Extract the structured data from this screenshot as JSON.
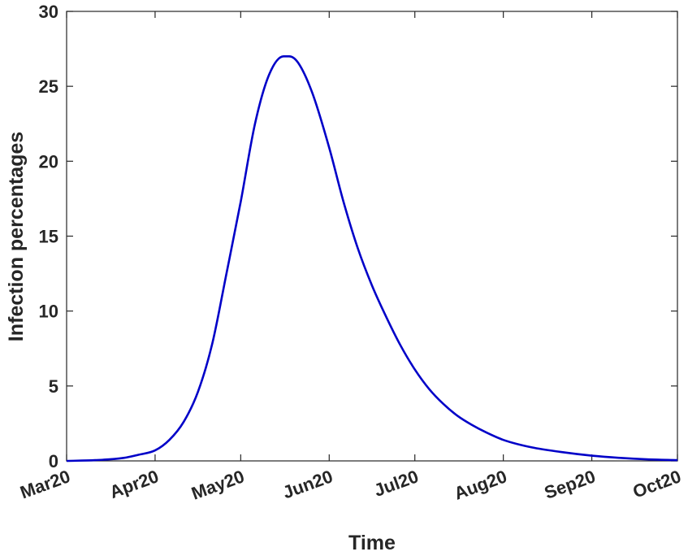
{
  "chart_data": {
    "type": "line",
    "title": "",
    "xlabel": "Time",
    "ylabel": "Infection percentages",
    "x_ticks": [
      "Mar20",
      "Apr20",
      "May20",
      "Jun20",
      "Jul20",
      "Aug20",
      "Sep20",
      "Oct20"
    ],
    "y_ticks": [
      "0",
      "5",
      "10",
      "15",
      "20",
      "25",
      "30"
    ],
    "xlim": [
      "2020-03-01",
      "2020-10-01"
    ],
    "ylim": [
      0,
      30
    ],
    "grid": false,
    "line_color": "#0000c8",
    "series": [
      {
        "x": [
          "2020-03-01",
          "2020-03-11",
          "2020-03-21",
          "2020-03-26",
          "2020-04-01",
          "2020-04-06",
          "2020-04-11",
          "2020-04-16",
          "2020-04-21",
          "2020-04-26",
          "2020-05-01",
          "2020-05-06",
          "2020-05-11",
          "2020-05-16",
          "2020-05-18",
          "2020-05-21",
          "2020-05-26",
          "2020-06-01",
          "2020-06-06",
          "2020-06-11",
          "2020-06-16",
          "2020-06-21",
          "2020-06-26",
          "2020-07-01",
          "2020-07-06",
          "2020-07-11",
          "2020-07-16",
          "2020-07-21",
          "2020-07-26",
          "2020-08-01",
          "2020-08-11",
          "2020-08-21",
          "2020-09-01",
          "2020-09-11",
          "2020-09-21",
          "2020-10-01"
        ],
        "y": [
          0.0,
          0.05,
          0.2,
          0.4,
          0.7,
          1.4,
          2.6,
          4.6,
          7.8,
          12.5,
          17.3,
          22.5,
          25.8,
          27.0,
          27.0,
          26.6,
          24.6,
          20.9,
          17.3,
          14.2,
          11.7,
          9.6,
          7.7,
          6.1,
          4.8,
          3.8,
          3.0,
          2.4,
          1.9,
          1.4,
          0.9,
          0.6,
          0.35,
          0.2,
          0.1,
          0.05
        ]
      }
    ]
  }
}
